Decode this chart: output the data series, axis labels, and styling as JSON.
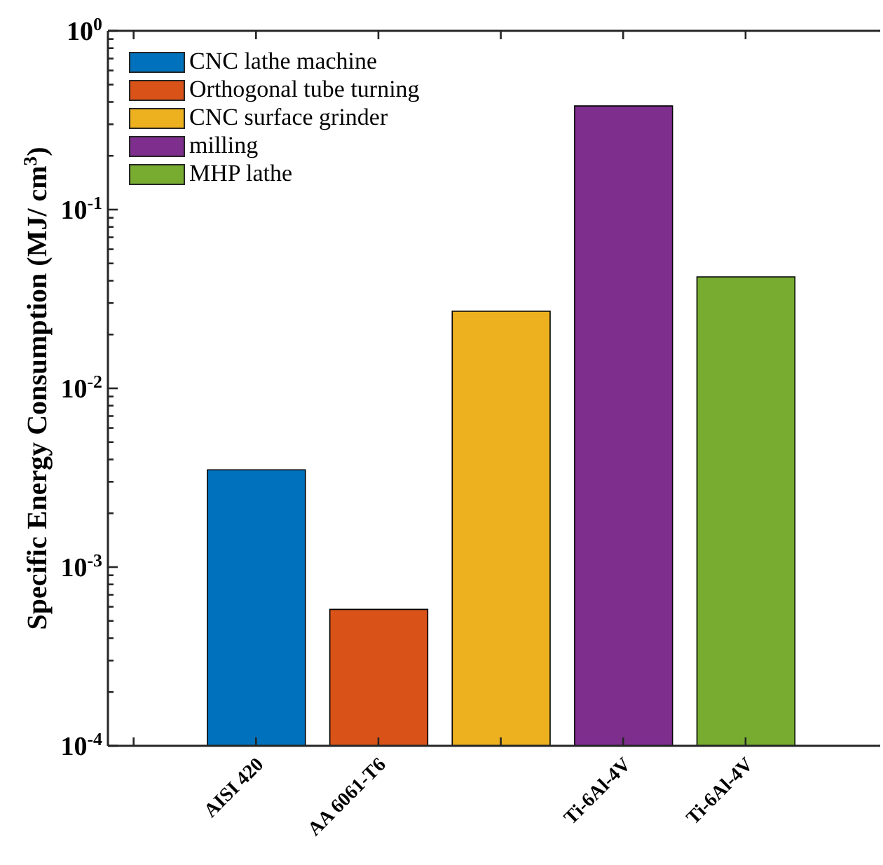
{
  "chart_data": {
    "type": "bar",
    "ylabel": "Specific Energy Consumption (MJ/ cm$^{3}$)",
    "categories": [
      null,
      "AISI 420",
      "AA 6061-T6",
      null,
      "Ti-6Al-4V",
      "Ti-6Al-4V"
    ],
    "series": [
      {
        "name": "CNC lathe machine",
        "color": "#0072bd",
        "values": [
          null,
          0.0035,
          null,
          null,
          null,
          null
        ]
      },
      {
        "name": "Orthogonal tube turning",
        "color": "#d95319",
        "values": [
          null,
          null,
          0.00058,
          null,
          null,
          null
        ]
      },
      {
        "name": "CNC surface grinder",
        "color": "#edb120",
        "values": [
          null,
          null,
          null,
          0.027,
          null,
          null
        ]
      },
      {
        "name": "milling",
        "color": "#7e2f8e",
        "values": [
          null,
          null,
          null,
          null,
          0.38,
          null
        ]
      },
      {
        "name": "MHP lathe",
        "color": "#77ac30",
        "values": [
          null,
          null,
          null,
          null,
          null,
          0.042
        ]
      }
    ],
    "log": true,
    "ylim": [
      0.0001,
      1
    ],
    "yticks": [
      {
        "value": 0.0001,
        "label": "10$^{-4}$"
      },
      {
        "value": 0.0002,
        "label": null
      },
      {
        "value": 0.0003,
        "label": null
      },
      {
        "value": 0.0004,
        "label": null
      },
      {
        "value": 0.0005,
        "label": null
      },
      {
        "value": 0.0006,
        "label": null
      },
      {
        "value": 0.0007,
        "label": null
      },
      {
        "value": 0.0008,
        "label": null
      },
      {
        "value": 0.0009,
        "label": null
      },
      {
        "value": 0.001,
        "label": "10$^{-3}$"
      },
      {
        "value": 0.002,
        "label": null
      },
      {
        "value": 0.003,
        "label": null
      },
      {
        "value": 0.004,
        "label": null
      },
      {
        "value": 0.005,
        "label": null
      },
      {
        "value": 0.006,
        "label": null
      },
      {
        "value": 0.007,
        "label": null
      },
      {
        "value": 0.008,
        "label": null
      },
      {
        "value": 0.009,
        "label": null
      },
      {
        "value": 0.01,
        "label": "10$^{-2}$"
      },
      {
        "value": 0.02,
        "label": null
      },
      {
        "value": 0.03,
        "label": null
      },
      {
        "value": 0.04,
        "label": null
      },
      {
        "value": 0.05,
        "label": null
      },
      {
        "value": 0.06,
        "label": null
      },
      {
        "value": 0.07,
        "label": null
      },
      {
        "value": 0.08,
        "label": null
      },
      {
        "value": 0.09,
        "label": null
      },
      {
        "value": 0.1,
        "label": "10$^{-1}$"
      },
      {
        "value": 0.2,
        "label": null
      },
      {
        "value": 0.3,
        "label": null
      },
      {
        "value": 0.4,
        "label": null
      },
      {
        "value": 0.5,
        "label": null
      },
      {
        "value": 0.6,
        "label": null
      },
      {
        "value": 0.7,
        "label": null
      },
      {
        "value": 0.8,
        "label": null
      },
      {
        "value": 0.9,
        "label": null
      },
      {
        "value": 1,
        "label": "10$^{0}$"
      }
    ],
    "legend": "top left"
  }
}
